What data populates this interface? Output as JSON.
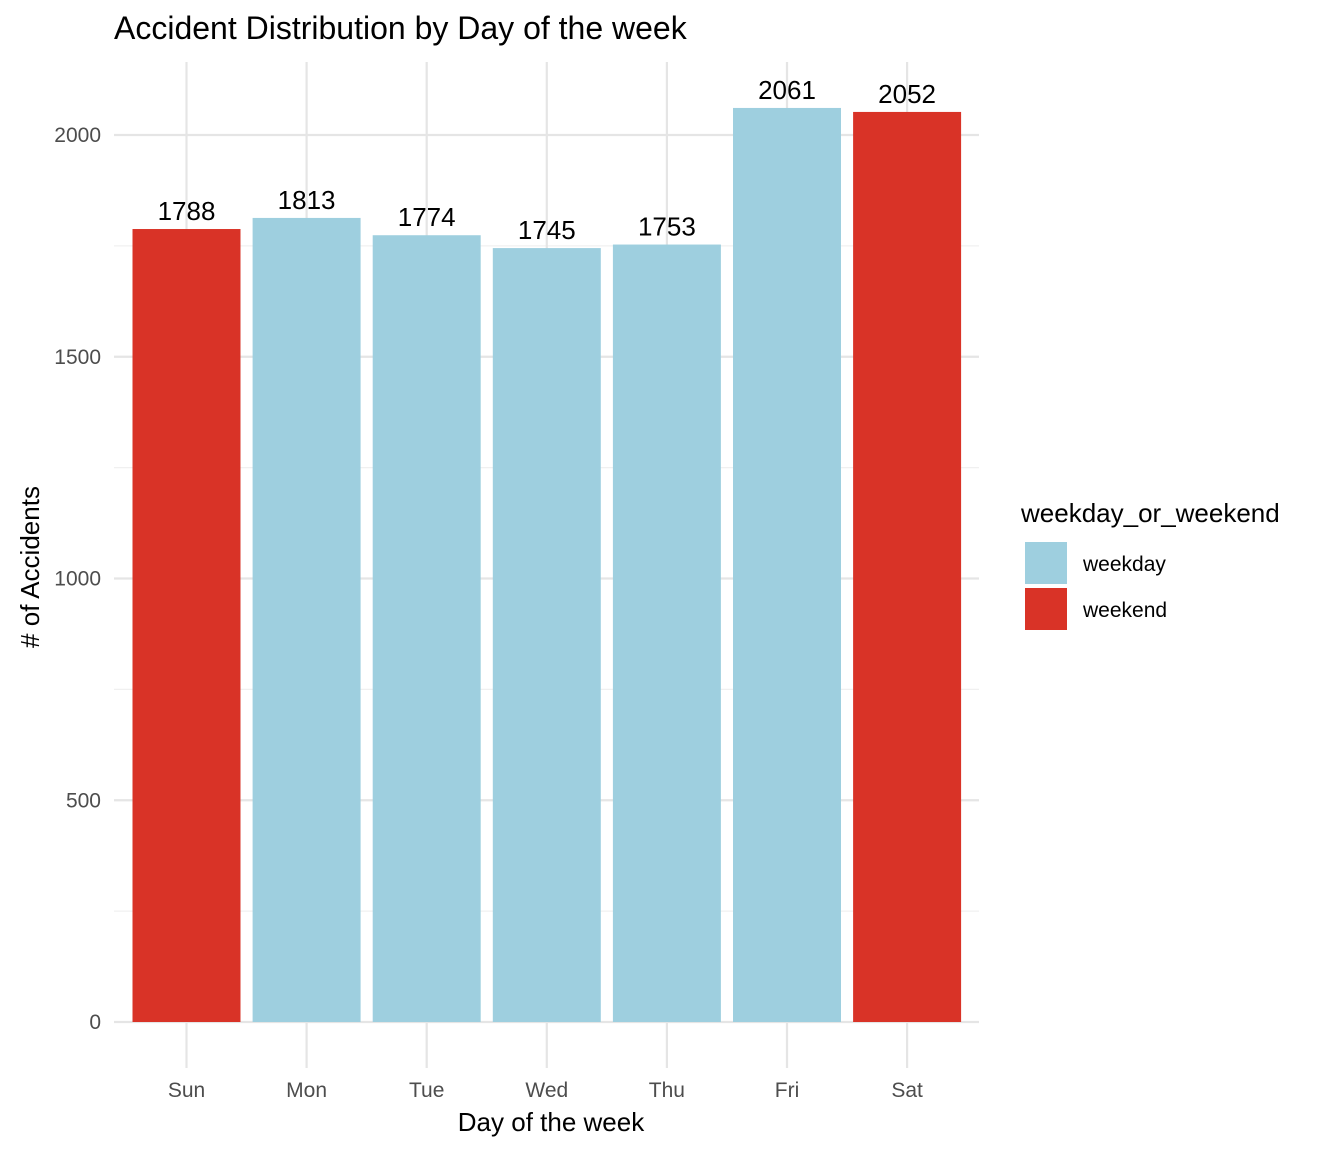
{
  "chart_data": {
    "type": "bar",
    "title": "Accident Distribution by Day of the week",
    "xlabel": "Day of the week",
    "ylabel": "# of Accidents",
    "categories": [
      "Sun",
      "Mon",
      "Tue",
      "Wed",
      "Thu",
      "Fri",
      "Sat"
    ],
    "values": [
      1788,
      1813,
      1774,
      1745,
      1753,
      2061,
      2052
    ],
    "groups": [
      "weekend",
      "weekday",
      "weekday",
      "weekday",
      "weekday",
      "weekday",
      "weekend"
    ],
    "data_labels": [
      "1788",
      "1813",
      "1774",
      "1745",
      "1753",
      "2061",
      "2052"
    ],
    "ylim": [
      0,
      2165
    ],
    "yticks": [
      0,
      500,
      1000,
      1500,
      2000
    ],
    "ytick_labels": [
      "0",
      "500",
      "1000",
      "1500",
      "2000"
    ],
    "grid": true,
    "legend": {
      "title": "weekday_or_weekend",
      "position": "right",
      "entries": [
        {
          "key": "weekday",
          "label": "weekday",
          "color": "#9ecfdf"
        },
        {
          "key": "weekend",
          "label": "weekend",
          "color": "#d93327"
        }
      ]
    }
  }
}
